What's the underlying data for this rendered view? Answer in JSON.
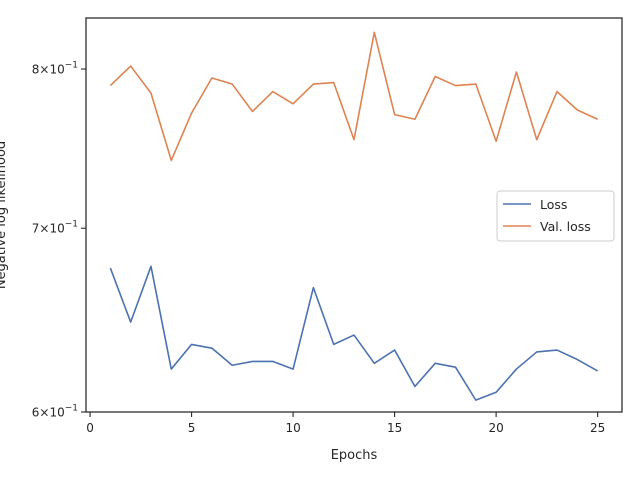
{
  "chart_data": {
    "type": "line",
    "title": "",
    "xlabel": "Epochs",
    "ylabel": "Negative log likelihood",
    "xlim": [
      -0.2,
      26.2
    ],
    "ylim": [
      0.6,
      0.835
    ],
    "yscale": "log",
    "grid": false,
    "legend_position": "center-right",
    "x_ticks": [
      0,
      5,
      10,
      15,
      20,
      25
    ],
    "x_tick_labels": [
      "0",
      "5",
      "10",
      "15",
      "20",
      "25"
    ],
    "y_ticks": [
      {
        "value": 0.6,
        "mantissa": "6",
        "base": "10",
        "exp": "−1"
      },
      {
        "value": 0.7,
        "mantissa": "7",
        "base": "10",
        "exp": "−1"
      },
      {
        "value": 0.8,
        "mantissa": "8",
        "base": "10",
        "exp": "−1"
      }
    ],
    "x": [
      1,
      2,
      3,
      4,
      5,
      6,
      7,
      8,
      9,
      10,
      11,
      12,
      13,
      14,
      15,
      16,
      17,
      18,
      19,
      20,
      21,
      22,
      23,
      24,
      25
    ],
    "series": [
      {
        "name": "Loss",
        "color": "#4c72b0",
        "values": [
          0.677,
          0.647,
          0.678,
          0.622,
          0.635,
          0.633,
          0.624,
          0.626,
          0.626,
          0.622,
          0.666,
          0.635,
          0.64,
          0.625,
          0.632,
          0.613,
          0.625,
          0.623,
          0.606,
          0.61,
          0.622,
          0.631,
          0.632,
          0.627,
          0.621
        ]
      },
      {
        "name": "Val. loss",
        "color": "#dd8452",
        "values": [
          0.789,
          0.802,
          0.784,
          0.741,
          0.771,
          0.794,
          0.79,
          0.772,
          0.785,
          0.777,
          0.79,
          0.791,
          0.754,
          0.825,
          0.77,
          0.767,
          0.795,
          0.789,
          0.79,
          0.753,
          0.798,
          0.754,
          0.785,
          0.773,
          0.767
        ]
      }
    ]
  }
}
